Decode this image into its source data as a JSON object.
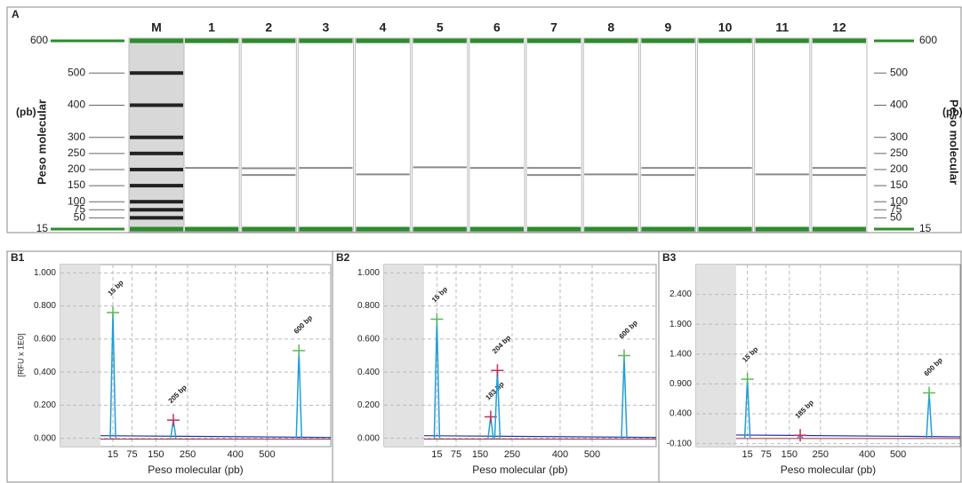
{
  "chart_data": [
    {
      "type": "gel",
      "title": "A",
      "ylabel": "Peso molecular",
      "yunit": "(pb)",
      "ylim": [
        15,
        600
      ],
      "yticks": [
        15,
        50,
        75,
        100,
        150,
        200,
        250,
        300,
        400,
        500,
        600
      ],
      "marker_color": "#2e8b2e",
      "band_color": "#8a8a8a",
      "ladder_color": "#222222",
      "lanes": [
        {
          "name": "M",
          "bands": [
            15,
            50,
            75,
            100,
            150,
            200,
            250,
            300,
            400,
            500,
            600
          ]
        },
        {
          "name": "1",
          "bands": [
            15,
            205,
            600
          ]
        },
        {
          "name": "2",
          "bands": [
            15,
            183,
            204,
            600
          ]
        },
        {
          "name": "3",
          "bands": [
            15,
            205,
            600
          ]
        },
        {
          "name": "4",
          "bands": [
            15,
            185,
            600
          ]
        },
        {
          "name": "5",
          "bands": [
            15,
            207,
            600
          ]
        },
        {
          "name": "6",
          "bands": [
            15,
            205,
            600
          ]
        },
        {
          "name": "7",
          "bands": [
            15,
            183,
            205,
            600
          ]
        },
        {
          "name": "8",
          "bands": [
            15,
            185,
            600
          ]
        },
        {
          "name": "9",
          "bands": [
            15,
            183,
            205,
            600
          ]
        },
        {
          "name": "10",
          "bands": [
            15,
            205,
            600
          ]
        },
        {
          "name": "11",
          "bands": [
            15,
            185,
            600
          ]
        },
        {
          "name": "12",
          "bands": [
            15,
            183,
            205,
            600
          ]
        }
      ]
    },
    {
      "type": "electropherogram",
      "title": "B1",
      "xlabel": "Peso molecular (pb)",
      "ylabel": "[RFU x 1E0]",
      "xlim": [
        -150,
        700
      ],
      "xticks": [
        15,
        75,
        150,
        250,
        400,
        500
      ],
      "ylim": [
        -0.05,
        1.05
      ],
      "yticks": [
        {
          "value": 0,
          "label": "0.000"
        },
        {
          "value": 0.2,
          "label": "0.200"
        },
        {
          "value": 0.4,
          "label": "0.400"
        },
        {
          "value": 0.6,
          "label": "0.600"
        },
        {
          "value": 0.8,
          "label": "0.800"
        },
        {
          "value": 1,
          "label": "1.000"
        }
      ],
      "trace_color": "#1f9fd8",
      "grid": true,
      "peaks": [
        {
          "label": "15 bp",
          "x": 15,
          "y": 0.76,
          "color": "#5cb85c"
        },
        {
          "label": "205 bp",
          "x": 205,
          "y": 0.11,
          "color": "#c0305a"
        },
        {
          "label": "600 bp",
          "x": 600,
          "y": 0.53,
          "color": "#5cb85c"
        }
      ]
    },
    {
      "type": "electropherogram",
      "title": "B2",
      "xlabel": "Peso molecular (pb)",
      "xlim": [
        -150,
        700
      ],
      "xticks": [
        15,
        75,
        150,
        250,
        400,
        500
      ],
      "ylim": [
        -0.05,
        1.05
      ],
      "yticks": [
        {
          "value": 0,
          "label": "0.000"
        },
        {
          "value": 0.2,
          "label": "0.200"
        },
        {
          "value": 0.4,
          "label": "0.400"
        },
        {
          "value": 0.6,
          "label": "0.600"
        },
        {
          "value": 0.8,
          "label": "0.800"
        },
        {
          "value": 1,
          "label": "1.000"
        }
      ],
      "trace_color": "#1f9fd8",
      "grid": true,
      "peaks": [
        {
          "label": "15 bp",
          "x": 15,
          "y": 0.72,
          "color": "#5cb85c"
        },
        {
          "label": "183 bp",
          "x": 183,
          "y": 0.13,
          "color": "#c0305a"
        },
        {
          "label": "204 bp",
          "x": 204,
          "y": 0.41,
          "color": "#c0305a"
        },
        {
          "label": "600 bp",
          "x": 600,
          "y": 0.5,
          "color": "#5cb85c"
        }
      ]
    },
    {
      "type": "electropherogram",
      "title": "B3",
      "xlabel": "Peso molecular (pb)",
      "xlim": [
        -150,
        700
      ],
      "xticks": [
        15,
        75,
        150,
        250,
        400,
        500
      ],
      "ylim": [
        -0.15,
        2.9
      ],
      "yticks": [
        {
          "value": -0.1,
          "label": "-0.100"
        },
        {
          "value": 0.4,
          "label": "0.400"
        },
        {
          "value": 0.9,
          "label": "0.900"
        },
        {
          "value": 1.4,
          "label": "1.400"
        },
        {
          "value": 1.9,
          "label": "1.900"
        },
        {
          "value": 2.4,
          "label": "2.400"
        }
      ],
      "trace_color": "#1f9fd8",
      "grid": true,
      "peaks": [
        {
          "label": "15 bp",
          "x": 15,
          "y": 0.98,
          "color": "#5cb85c"
        },
        {
          "label": "185 bp",
          "x": 185,
          "y": 0.04,
          "color": "#c0305a"
        },
        {
          "label": "600 bp",
          "x": 600,
          "y": 0.75,
          "color": "#5cb85c"
        }
      ]
    }
  ]
}
